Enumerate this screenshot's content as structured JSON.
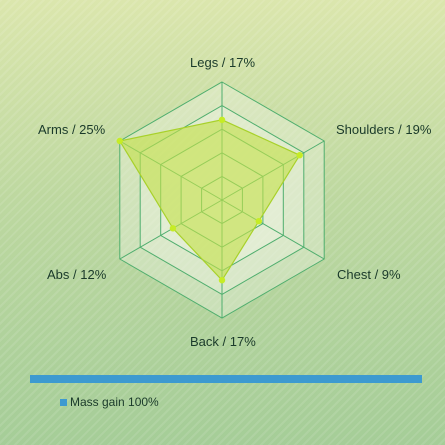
{
  "chart_data": {
    "type": "radar",
    "axes": [
      {
        "category": "Legs",
        "label": "Legs / 17%",
        "value": 17
      },
      {
        "category": "Shoulders",
        "label": "Shoulders / 19%",
        "value": 19
      },
      {
        "category": "Chest",
        "label": "Chest / 9%",
        "value": 9
      },
      {
        "category": "Back",
        "label": "Back / 17%",
        "value": 17
      },
      {
        "category": "Abs",
        "label": "Abs / 12%",
        "value": 12
      },
      {
        "category": "Arms",
        "label": "Arms / 25%",
        "value": 25
      }
    ],
    "rmax": 25,
    "grid_levels": 5,
    "grid": true,
    "series": [
      {
        "name": "Mass gain",
        "legend": "Mass gain 100%",
        "values": [
          17,
          19,
          9,
          17,
          12,
          25
        ]
      }
    ],
    "legend_position": "bottom-left"
  },
  "colors": {
    "fill": "#c4e04a",
    "stroke": "#a8d12a",
    "point": "#c6ec25",
    "grid": "#4fae6e",
    "grid_fill": "#eef5e6",
    "divider": "#3d9ad0",
    "legend_swatch": "#3d9ad0"
  }
}
